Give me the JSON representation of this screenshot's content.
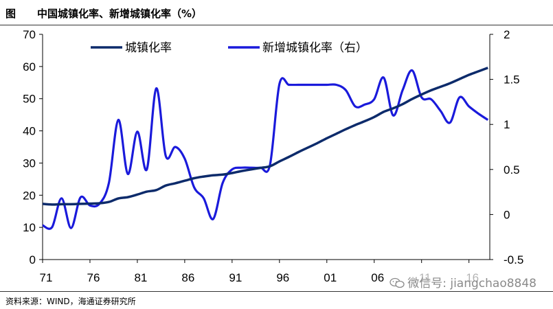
{
  "header": {
    "figure_label": "图",
    "title": "中国城镇化率、新增城镇化率（%）"
  },
  "footer": {
    "source": "资料来源：WIND，海通证券研究所",
    "watermark": "微信号: jiangchao8848"
  },
  "colors": {
    "urbanization_rate": "#0d2b6b",
    "new_urbanization_rate": "#1a1adb"
  },
  "chart_data": {
    "type": "line",
    "x_ticks": [
      "71",
      "76",
      "81",
      "86",
      "91",
      "96",
      "01",
      "06",
      "11",
      "16"
    ],
    "y_left": {
      "ylim": [
        0,
        70
      ],
      "ticks": [
        "0",
        "10",
        "20",
        "30",
        "40",
        "50",
        "60",
        "70"
      ]
    },
    "y_right": {
      "ylim": [
        -0.5,
        2
      ],
      "ticks": [
        "-0.5",
        "0",
        "0.5",
        "1",
        "1.5",
        "2"
      ]
    },
    "legend_position": "top",
    "series": [
      {
        "name": "城镇化率",
        "axis": "left",
        "x": [
          1971,
          1972,
          1973,
          1974,
          1975,
          1976,
          1977,
          1978,
          1979,
          1980,
          1981,
          1982,
          1983,
          1984,
          1985,
          1986,
          1987,
          1988,
          1989,
          1990,
          1991,
          1992,
          1993,
          1994,
          1995,
          1996,
          1997,
          1998,
          1999,
          2000,
          2001,
          2002,
          2003,
          2004,
          2005,
          2006,
          2007,
          2008,
          2009,
          2010,
          2011,
          2012,
          2013,
          2014,
          2015,
          2016,
          2017,
          2018
        ],
        "values": [
          17.3,
          17.1,
          17.2,
          17.2,
          17.3,
          17.4,
          17.5,
          17.9,
          19.0,
          19.4,
          20.2,
          21.1,
          21.6,
          23.0,
          23.7,
          24.5,
          25.3,
          25.8,
          26.2,
          26.4,
          26.9,
          27.5,
          28.0,
          28.5,
          29.0,
          30.5,
          31.9,
          33.4,
          34.8,
          36.2,
          37.7,
          39.1,
          40.5,
          41.8,
          43.0,
          44.3,
          45.9,
          47.0,
          48.3,
          49.9,
          51.3,
          52.6,
          53.7,
          54.8,
          56.1,
          57.4,
          58.5,
          59.6
        ]
      },
      {
        "name": "新增城镇化率（右）",
        "axis": "right",
        "x": [
          1971,
          1972,
          1973,
          1974,
          1975,
          1976,
          1977,
          1978,
          1979,
          1980,
          1981,
          1982,
          1983,
          1984,
          1985,
          1986,
          1987,
          1988,
          1989,
          1990,
          1991,
          1992,
          1993,
          1994,
          1995,
          1996,
          1997,
          1998,
          1999,
          2000,
          2001,
          2002,
          2003,
          2004,
          2005,
          2006,
          2007,
          2008,
          2009,
          2010,
          2011,
          2012,
          2013,
          2014,
          2015,
          2016,
          2017,
          2018
        ],
        "values": [
          -0.12,
          -0.14,
          0.18,
          -0.15,
          0.19,
          0.1,
          0.12,
          0.35,
          1.05,
          0.45,
          0.92,
          0.5,
          1.4,
          0.65,
          0.75,
          0.62,
          0.3,
          0.18,
          -0.05,
          0.35,
          0.5,
          0.52,
          0.52,
          0.52,
          0.55,
          1.45,
          1.44,
          1.44,
          1.44,
          1.44,
          1.44,
          1.44,
          1.38,
          1.2,
          1.22,
          1.28,
          1.52,
          1.1,
          1.38,
          1.6,
          1.3,
          1.28,
          1.15,
          1.02,
          1.3,
          1.2,
          1.12,
          1.05
        ]
      }
    ]
  }
}
